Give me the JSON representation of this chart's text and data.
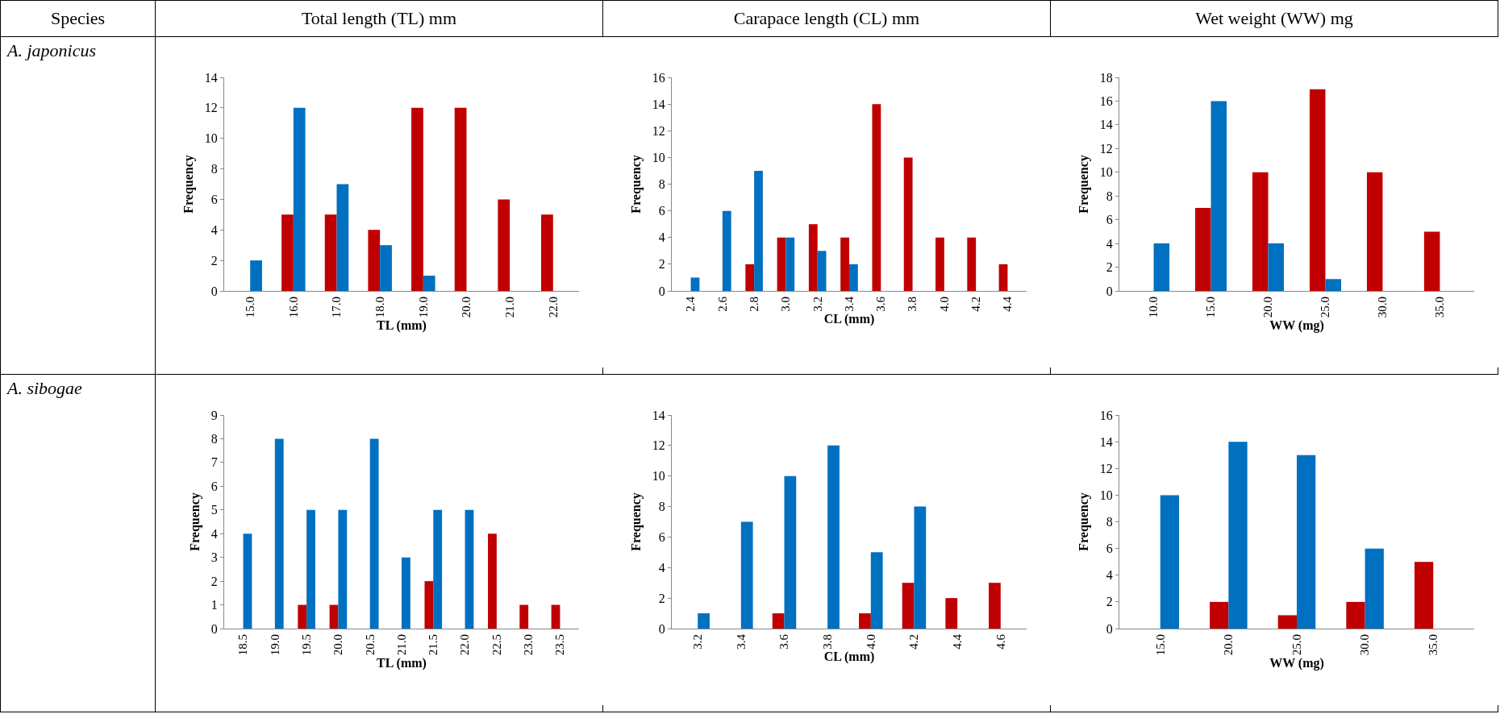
{
  "chart_data": [
    {
      "type": "other",
      "annotations": [
        "Species",
        "Total length (TL) mm",
        "Carapace length (CL) mm",
        "Wet weight (WW) mg",
        "A. japonicus",
        "A. sibogae"
      ]
    },
    {
      "type": "bar",
      "xlabel": "TL (mm)",
      "ylabel": "Frequency",
      "categories": [
        "15.0",
        "16.0",
        "17.0",
        "18.0",
        "19.0",
        "20.0",
        "21.0",
        "22.0"
      ],
      "series": [
        {
          "color": "#c00000",
          "values": [
            0,
            5,
            5,
            4,
            12,
            12,
            6,
            5
          ]
        },
        {
          "color": "#0070c0",
          "values": [
            2,
            12,
            7,
            3,
            1,
            0,
            0,
            0
          ]
        }
      ],
      "ylim": [
        0,
        14
      ],
      "yticks": [
        0,
        2,
        4,
        6,
        8,
        10,
        12,
        14
      ],
      "grid": false
    },
    {
      "type": "bar",
      "xlabel": "CL (mm)",
      "ylabel": "Frequency",
      "categories": [
        "2.4",
        "2.6",
        "2.8",
        "3.0",
        "3.2",
        "3.4",
        "3.6",
        "3.8",
        "4.0",
        "4.2",
        "4.4"
      ],
      "series": [
        {
          "color": "#c00000",
          "values": [
            0,
            0,
            2,
            4,
            5,
            4,
            14,
            10,
            4,
            4,
            2
          ]
        },
        {
          "color": "#0070c0",
          "values": [
            1,
            6,
            9,
            4,
            3,
            2,
            0,
            0,
            0,
            0,
            0
          ]
        }
      ],
      "ylim": [
        0,
        16
      ],
      "yticks": [
        0,
        2,
        4,
        6,
        8,
        10,
        12,
        14,
        16
      ],
      "grid": false
    },
    {
      "type": "bar",
      "xlabel": "WW (mg)",
      "ylabel": "Frequency",
      "categories": [
        "10.0",
        "15.0",
        "20.0",
        "25.0",
        "30.0",
        "35.0"
      ],
      "series": [
        {
          "color": "#c00000",
          "values": [
            0,
            7,
            10,
            17,
            10,
            5
          ]
        },
        {
          "color": "#0070c0",
          "values": [
            4,
            16,
            4,
            1,
            0,
            0
          ]
        }
      ],
      "ylim": [
        0,
        18
      ],
      "yticks": [
        0,
        2,
        4,
        6,
        8,
        10,
        12,
        14,
        16,
        18
      ],
      "grid": false
    },
    {
      "type": "bar",
      "xlabel": "TL (mm)",
      "ylabel": "Frequency",
      "categories": [
        "18.5",
        "19.0",
        "19.5",
        "20.0",
        "20.5",
        "21.0",
        "21.5",
        "22.0",
        "22.5",
        "23.0",
        "23.5"
      ],
      "series": [
        {
          "color": "#c00000",
          "values": [
            0,
            0,
            1,
            1,
            0,
            0,
            2,
            0,
            4,
            1,
            1
          ]
        },
        {
          "color": "#0070c0",
          "values": [
            4,
            8,
            5,
            5,
            8,
            3,
            5,
            5,
            0,
            0,
            0
          ]
        }
      ],
      "ylim": [
        0,
        9
      ],
      "yticks": [
        0,
        1,
        2,
        3,
        4,
        5,
        6,
        7,
        8,
        9
      ],
      "grid": false
    },
    {
      "type": "bar",
      "xlabel": "CL (mm)",
      "ylabel": "Frequency",
      "categories": [
        "3.2",
        "3.4",
        "3.6",
        "3.8",
        "4.0",
        "4.2",
        "4.4",
        "4.6"
      ],
      "series": [
        {
          "color": "#c00000",
          "values": [
            0,
            0,
            1,
            0,
            1,
            3,
            2,
            3
          ]
        },
        {
          "color": "#0070c0",
          "values": [
            1,
            7,
            10,
            12,
            5,
            8,
            0,
            0
          ]
        }
      ],
      "ylim": [
        0,
        14
      ],
      "yticks": [
        0,
        2,
        4,
        6,
        8,
        10,
        12,
        14
      ],
      "grid": false
    },
    {
      "type": "bar",
      "xlabel": "WW (mg)",
      "ylabel": "Frequency",
      "categories": [
        "15.0",
        "20.0",
        "25.0",
        "30.0",
        "35.0"
      ],
      "series": [
        {
          "color": "#c00000",
          "values": [
            0,
            2,
            1,
            2,
            5
          ]
        },
        {
          "color": "#0070c0",
          "values": [
            10,
            14,
            13,
            6,
            0
          ]
        }
      ],
      "ylim": [
        0,
        16
      ],
      "yticks": [
        0,
        2,
        4,
        6,
        8,
        10,
        12,
        14,
        16
      ],
      "grid": false
    }
  ]
}
